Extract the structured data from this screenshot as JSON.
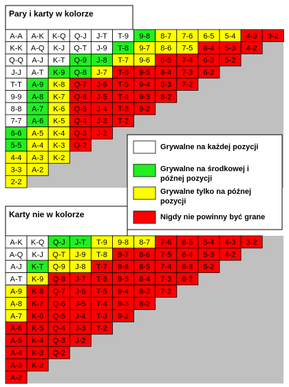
{
  "sections": [
    {
      "title": "Pary i karty w kolorze",
      "rows": [
        {
          "labels": [
            "A-A",
            "A-K",
            "K-Q",
            "Q-J",
            "J-T",
            "T-9",
            "9-8",
            "8-7",
            "7-6",
            "6-5",
            "5-4",
            "4-3",
            "3-2"
          ],
          "colors": [
            "#ffffff",
            "#ffffff",
            "#ffffff",
            "#ffffff",
            "#ffffff",
            "#ffffff",
            "#22ee22",
            "#ffff00",
            "#ffff00",
            "#ffff00",
            "#ffff00",
            "#ff0000",
            "#ff0000"
          ]
        },
        {
          "labels": [
            "K-K",
            "A-Q",
            "K-J",
            "Q-T",
            "J-9",
            "T-8",
            "9-7",
            "8-6",
            "7-5",
            "6-4",
            "5-3",
            "4-2"
          ],
          "colors": [
            "#ffffff",
            "#ffffff",
            "#ffffff",
            "#ffffff",
            "#ffffff",
            "#22ee22",
            "#ffff00",
            "#ffff00",
            "#ffff00",
            "#ff0000",
            "#ff0000",
            "#ff0000"
          ]
        },
        {
          "labels": [
            "Q-Q",
            "A-J",
            "K-T",
            "Q-9",
            "J-8",
            "T-7",
            "9-6",
            "8-5",
            "7-4",
            "6-3",
            "5-2"
          ],
          "colors": [
            "#ffffff",
            "#ffffff",
            "#ffffff",
            "#22ee22",
            "#22ee22",
            "#ffff00",
            "#ffff00",
            "#ff0000",
            "#ff0000",
            "#ff0000",
            "#ff0000"
          ]
        },
        {
          "labels": [
            "J-J",
            "A-T",
            "K-9",
            "Q-8",
            "J-7",
            "T-6",
            "9-5",
            "8-4",
            "7-3",
            "6-2"
          ],
          "colors": [
            "#ffffff",
            "#ffffff",
            "#22ee22",
            "#22ee22",
            "#ffff00",
            "#ff0000",
            "#ff0000",
            "#ff0000",
            "#ff0000",
            "#ff0000"
          ]
        },
        {
          "labels": [
            "T-T",
            "A-9",
            "K-8",
            "Q-7",
            "J-6",
            "T-5",
            "9-4",
            "8-3",
            "7-2"
          ],
          "colors": [
            "#ffffff",
            "#22ee22",
            "#ffff00",
            "#ff0000",
            "#ff0000",
            "#ff0000",
            "#ff0000",
            "#ff0000",
            "#ff0000"
          ]
        },
        {
          "labels": [
            "9-9",
            "A-8",
            "K-7",
            "Q-6",
            "J-5",
            "T-4",
            "9-3",
            "8-2"
          ],
          "colors": [
            "#ffffff",
            "#22ee22",
            "#ffff00",
            "#ff0000",
            "#ff0000",
            "#ff0000",
            "#ff0000",
            "#ff0000"
          ]
        },
        {
          "labels": [
            "8-8",
            "A-7",
            "K-6",
            "Q-5",
            "J-4",
            "T-3",
            "9-2"
          ],
          "colors": [
            "#ffffff",
            "#22ee22",
            "#ffff00",
            "#ff0000",
            "#ff0000",
            "#ff0000",
            "#ff0000"
          ]
        },
        {
          "labels": [
            "7-7",
            "A-6",
            "K-5",
            "Q-4",
            "J-3",
            "T-2"
          ],
          "colors": [
            "#ffffff",
            "#22ee22",
            "#ffff00",
            "#ff0000",
            "#ff0000",
            "#ff0000"
          ]
        },
        {
          "labels": [
            "6-6",
            "A-5",
            "K-4",
            "Q-3",
            "J-2"
          ],
          "colors": [
            "#22ee22",
            "#ffff00",
            "#ffff00",
            "#ff0000",
            "#ff0000"
          ]
        },
        {
          "labels": [
            "5-5",
            "A-4",
            "K-3",
            "Q-2"
          ],
          "colors": [
            "#22ee22",
            "#ffff00",
            "#ffff00",
            "#ff0000"
          ]
        },
        {
          "labels": [
            "4-4",
            "A-3",
            "K-2"
          ],
          "colors": [
            "#ffff00",
            "#ffff00",
            "#ffff00"
          ]
        },
        {
          "labels": [
            "3-3",
            "A-2"
          ],
          "colors": [
            "#ffff00",
            "#ffff00"
          ]
        },
        {
          "labels": [
            "2-2"
          ],
          "colors": [
            "#ffff00"
          ]
        }
      ]
    },
    {
      "title": "Karty nie w kolorze",
      "rows": [
        {
          "labels": [
            "A-K",
            "K-Q",
            "Q-J",
            "J-T",
            "T-9",
            "9-8",
            "8-7",
            "7-6",
            "6-5",
            "5-4",
            "4-3",
            "3-2"
          ],
          "colors": [
            "#ffffff",
            "#ffffff",
            "#22ee22",
            "#22ee22",
            "#ffff00",
            "#ffff00",
            "#ffff00",
            "#ff0000",
            "#ff0000",
            "#ff0000",
            "#ff0000",
            "#ff0000"
          ]
        },
        {
          "labels": [
            "A-Q",
            "K-J",
            "Q-T",
            "J-9",
            "T-8",
            "9-7",
            "8-6",
            "7-5",
            "6-4",
            "5-3",
            "4-2"
          ],
          "colors": [
            "#ffffff",
            "#ffffff",
            "#ffff00",
            "#ffff00",
            "#ffff00",
            "#ff0000",
            "#ff0000",
            "#ff0000",
            "#ff0000",
            "#ff0000",
            "#ff0000"
          ]
        },
        {
          "labels": [
            "A-J",
            "K-T",
            "Q-9",
            "J-8",
            "T-7",
            "9-6",
            "8-5",
            "7-4",
            "6-3",
            "5-2"
          ],
          "colors": [
            "#ffffff",
            "#22ee22",
            "#ffff00",
            "#ffff00",
            "#ff0000",
            "#ff0000",
            "#ff0000",
            "#ff0000",
            "#ff0000",
            "#ff0000"
          ]
        },
        {
          "labels": [
            "A-T",
            "K-9",
            "Q-8",
            "J-7",
            "T-6",
            "9-5",
            "8-4",
            "7-3",
            "6-2"
          ],
          "colors": [
            "#ffffff",
            "#ffff00",
            "#ff0000",
            "#ff0000",
            "#ff0000",
            "#ff0000",
            "#ff0000",
            "#ff0000",
            "#ff0000"
          ]
        },
        {
          "labels": [
            "A-9",
            "K-8",
            "Q-7",
            "J-6",
            "T-5",
            "9-4",
            "8-3",
            "7-2"
          ],
          "colors": [
            "#ffff00",
            "#ff0000",
            "#ff0000",
            "#ff0000",
            "#ff0000",
            "#ff0000",
            "#ff0000",
            "#ff0000"
          ]
        },
        {
          "labels": [
            "A-8",
            "K-7",
            "Q-6",
            "J-5",
            "T-4",
            "9-3",
            "8-2"
          ],
          "colors": [
            "#ffff00",
            "#ff0000",
            "#ff0000",
            "#ff0000",
            "#ff0000",
            "#ff0000",
            "#ff0000"
          ]
        },
        {
          "labels": [
            "A-7",
            "K-6",
            "Q-5",
            "J-4",
            "T-3",
            "9-2"
          ],
          "colors": [
            "#ffff00",
            "#ff0000",
            "#ff0000",
            "#ff0000",
            "#ff0000",
            "#ff0000"
          ]
        },
        {
          "labels": [
            "A-6",
            "K-5",
            "Q-4",
            "J-3",
            "T-2"
          ],
          "colors": [
            "#ff0000",
            "#ff0000",
            "#ff0000",
            "#ff0000",
            "#ff0000"
          ]
        },
        {
          "labels": [
            "A-5",
            "K-4",
            "Q-3",
            "J-2"
          ],
          "colors": [
            "#ff0000",
            "#ff0000",
            "#ff0000",
            "#ff0000"
          ]
        },
        {
          "labels": [
            "A-4",
            "K-3",
            "Q-2"
          ],
          "colors": [
            "#ff0000",
            "#ff0000",
            "#ff0000"
          ]
        },
        {
          "labels": [
            "A-3",
            "K-2"
          ],
          "colors": [
            "#ff0000",
            "#ff0000"
          ]
        },
        {
          "labels": [
            "A-2"
          ],
          "colors": [
            "#ff0000"
          ]
        }
      ]
    }
  ],
  "legend": [
    {
      "color": "#ffffff",
      "lines": [
        "Grywalne na każdej pozycji"
      ]
    },
    {
      "color": "#22ee22",
      "lines": [
        "Grywalne na środkowej i",
        "późnej pozycji"
      ]
    },
    {
      "color": "#ffff00",
      "lines": [
        "Grywalne tylko na późnej",
        "pozycji"
      ]
    },
    {
      "color": "#ff0000",
      "lines": [
        "Nigdy nie powinny być grane"
      ]
    }
  ]
}
